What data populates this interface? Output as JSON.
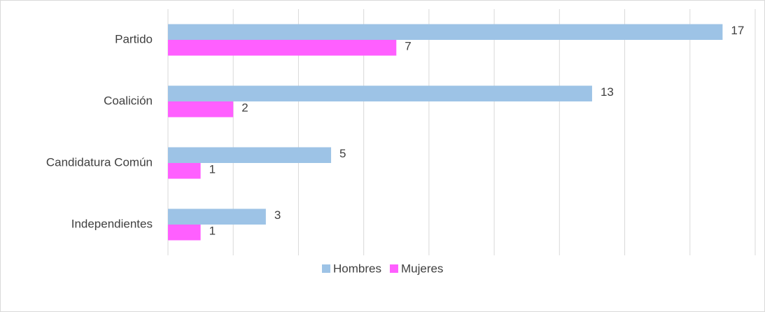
{
  "chart_data": {
    "type": "hbar",
    "categories": [
      "Partido",
      "Coalición",
      "Candidatura Común",
      "Independientes"
    ],
    "series": [
      {
        "name": "Hombres",
        "color": "#9dc3e6",
        "values": [
          17,
          13,
          5,
          3
        ]
      },
      {
        "name": "Mujeres",
        "color": "#ff5fff",
        "values": [
          7,
          2,
          1,
          1
        ]
      }
    ],
    "xlim": [
      0,
      18
    ],
    "xticks": [
      0,
      2,
      4,
      6,
      8,
      10,
      12,
      14,
      16,
      18
    ],
    "grid": true,
    "legend": "bottom"
  }
}
